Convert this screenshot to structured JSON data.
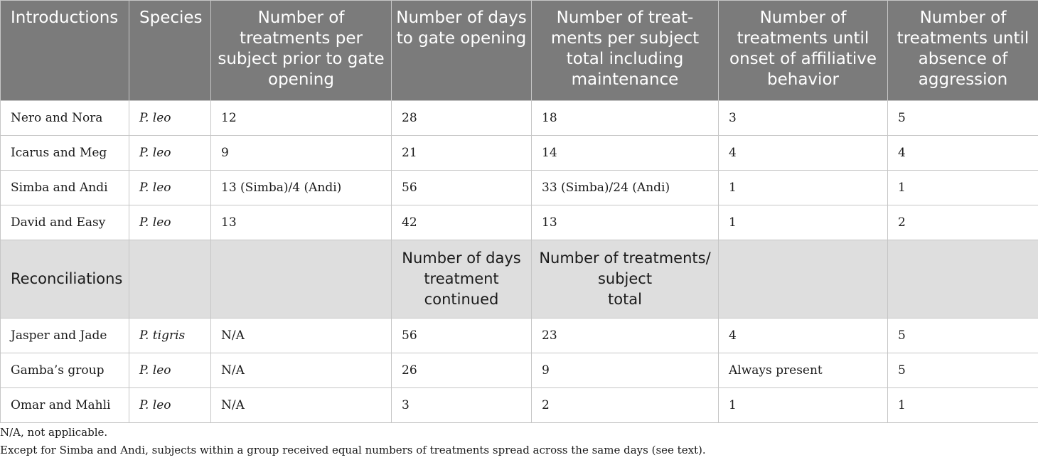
{
  "headers": [
    "Introductions",
    "Species",
    "Number of treatments per subject prior to gate opening",
    "Number of days to gate opening",
    "Number of treat-ments per subject total including maintenance",
    "Number of treatments until onset of affiliative behavior",
    "Number of treatments until absence of aggression"
  ],
  "intro_rows": [
    {
      "group": "Nero and Nora",
      "species": "P. leo",
      "prior": "12",
      "days": "28",
      "total": "18",
      "affiliative": "3",
      "aggression": "5"
    },
    {
      "group": "Icarus and Meg",
      "species": "P. leo",
      "prior": "9",
      "days": "21",
      "total": "14",
      "affiliative": "4",
      "aggression": "4"
    },
    {
      "group": "Simba and Andi",
      "species": "P. leo",
      "prior": "13 (Simba)/4 (Andi)",
      "days": "56",
      "total": "33 (Simba)/24 (Andi)",
      "affiliative": "1",
      "aggression": "1"
    },
    {
      "group": "David and Easy",
      "species": "P. leo",
      "prior": "13",
      "days": "42",
      "total": "13",
      "affiliative": "1",
      "aggression": "2"
    }
  ],
  "subheader": {
    "label": "Reconciliations",
    "days": "Number of days treatment continued",
    "total_line1": "Number of treatments/",
    "total_line2": "subject",
    "total_line3": "total"
  },
  "recon_rows": [
    {
      "group": "Jasper and Jade",
      "species": "P. tigris",
      "prior": "N/A",
      "days": "56",
      "total": "23",
      "affiliative": "4",
      "aggression": "5"
    },
    {
      "group": "Gamba’s group",
      "species": "P. leo",
      "prior": "N/A",
      "days": "26",
      "total": "9",
      "affiliative": "Always present",
      "aggression": "5"
    },
    {
      "group": "Omar and Mahli",
      "species": "P. leo",
      "prior": "N/A",
      "days": "3",
      "total": "2",
      "affiliative": "1",
      "aggression": "1"
    }
  ],
  "footnotes": [
    "N/A, not applicable.",
    "Except for Simba and Andi, subjects within a group received equal numbers of treatments spread across the same days (see text)."
  ]
}
